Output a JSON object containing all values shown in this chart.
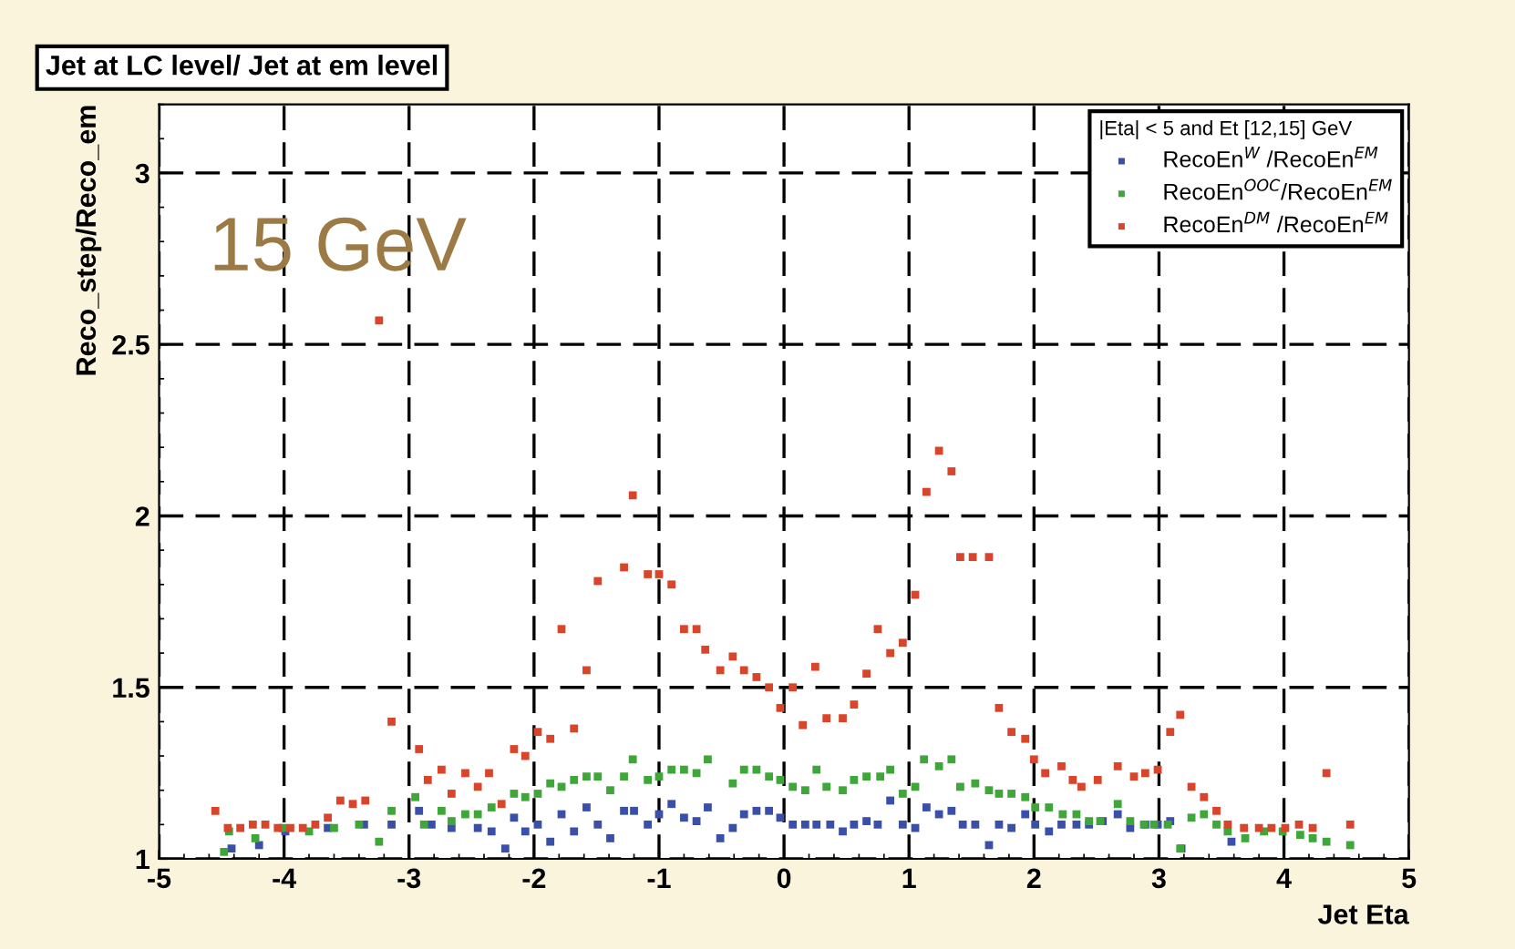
{
  "chart_data": {
    "type": "scatter",
    "title": "Jet at LC level/ Jet at em level",
    "xlabel": "Jet Eta",
    "ylabel": "Reco_step/Reco_em",
    "legend_title": "|Eta| < 5 and Et [12,15] GeV",
    "annotations": [
      "15 GeV"
    ],
    "xlim": [
      -5,
      5
    ],
    "ylim": [
      1,
      3.2
    ],
    "xticks": [
      -5,
      -4,
      -3,
      -2,
      -1,
      0,
      1,
      2,
      3,
      4,
      5
    ],
    "yticks": [
      1,
      1.5,
      2,
      2.5,
      3
    ],
    "grid": true,
    "legend": "top right",
    "marker": "square",
    "series": [
      {
        "name": "RecoEn$^{W}$ /RecoEn$^{EM}$",
        "color": "#3a4fa8",
        "x": [
          -4.42,
          -4.2,
          -3.99,
          -3.65,
          -3.36,
          -3.14,
          -2.92,
          -2.82,
          -2.66,
          -2.45,
          -2.34,
          -2.23,
          -2.16,
          -2.07,
          -1.97,
          -1.87,
          -1.78,
          -1.68,
          -1.58,
          -1.49,
          -1.39,
          -1.28,
          -1.2,
          -1.09,
          -1.0,
          -0.9,
          -0.8,
          -0.7,
          -0.61,
          -0.51,
          -0.41,
          -0.32,
          -0.22,
          -0.12,
          -0.03,
          0.07,
          0.17,
          0.26,
          0.37,
          0.47,
          0.56,
          0.66,
          0.75,
          0.85,
          0.95,
          1.05,
          1.14,
          1.24,
          1.34,
          1.43,
          1.53,
          1.64,
          1.72,
          1.82,
          1.93,
          2.01,
          2.12,
          2.22,
          2.34,
          2.44,
          2.55,
          2.67,
          2.77,
          2.89,
          2.99,
          3.09,
          3.18,
          3.58
        ],
        "values": [
          1.03,
          1.04,
          1.08,
          1.09,
          1.1,
          1.1,
          1.14,
          1.1,
          1.09,
          1.09,
          1.08,
          1.03,
          1.12,
          1.08,
          1.1,
          1.05,
          1.13,
          1.08,
          1.15,
          1.1,
          1.06,
          1.14,
          1.14,
          1.1,
          1.13,
          1.16,
          1.12,
          1.11,
          1.15,
          1.06,
          1.09,
          1.13,
          1.14,
          1.14,
          1.12,
          1.1,
          1.1,
          1.1,
          1.1,
          1.08,
          1.1,
          1.11,
          1.1,
          1.17,
          1.1,
          1.09,
          1.15,
          1.13,
          1.14,
          1.1,
          1.1,
          1.04,
          1.1,
          1.09,
          1.13,
          1.1,
          1.08,
          1.1,
          1.1,
          1.1,
          1.11,
          1.13,
          1.09,
          1.1,
          1.1,
          1.11,
          1.03,
          1.05
        ]
      },
      {
        "name": "RecoEn$^{OOC}$/RecoEn$^{EM}$",
        "color": "#3fa63a",
        "x": [
          -4.48,
          -4.44,
          -4.23,
          -4.01,
          -3.8,
          -3.6,
          -3.4,
          -3.24,
          -3.14,
          -2.95,
          -2.88,
          -2.74,
          -2.66,
          -2.55,
          -2.45,
          -2.34,
          -2.16,
          -2.07,
          -1.97,
          -1.87,
          -1.78,
          -1.68,
          -1.58,
          -1.49,
          -1.39,
          -1.28,
          -1.21,
          -1.09,
          -1.0,
          -0.9,
          -0.8,
          -0.7,
          -0.61,
          -0.41,
          -0.32,
          -0.22,
          -0.12,
          -0.03,
          0.07,
          0.17,
          0.26,
          0.34,
          0.47,
          0.56,
          0.66,
          0.77,
          0.85,
          0.95,
          1.05,
          1.12,
          1.24,
          1.34,
          1.41,
          1.53,
          1.64,
          1.72,
          1.82,
          1.93,
          2.01,
          2.12,
          2.23,
          2.34,
          2.44,
          2.53,
          2.67,
          2.77,
          2.88,
          2.96,
          3.07,
          3.17,
          3.26,
          3.36,
          3.46,
          3.55,
          3.69,
          3.84,
          3.99,
          4.13,
          4.23,
          4.34,
          4.53
        ],
        "values": [
          1.02,
          1.08,
          1.06,
          1.09,
          1.08,
          1.09,
          1.1,
          1.05,
          1.14,
          1.18,
          1.1,
          1.14,
          1.11,
          1.13,
          1.13,
          1.15,
          1.19,
          1.18,
          1.19,
          1.22,
          1.21,
          1.23,
          1.24,
          1.24,
          1.2,
          1.24,
          1.29,
          1.23,
          1.24,
          1.26,
          1.26,
          1.25,
          1.29,
          1.22,
          1.26,
          1.26,
          1.24,
          1.23,
          1.21,
          1.2,
          1.26,
          1.21,
          1.2,
          1.23,
          1.24,
          1.24,
          1.26,
          1.19,
          1.21,
          1.29,
          1.27,
          1.29,
          1.21,
          1.22,
          1.2,
          1.19,
          1.19,
          1.18,
          1.15,
          1.15,
          1.13,
          1.13,
          1.11,
          1.11,
          1.16,
          1.11,
          1.1,
          1.1,
          1.1,
          1.03,
          1.12,
          1.13,
          1.1,
          1.08,
          1.06,
          1.08,
          1.08,
          1.07,
          1.06,
          1.05,
          1.04
        ]
      },
      {
        "name": "RecoEn$^{DM}$ /RecoEn$^{EM}$",
        "color": "#d9452b",
        "x": [
          -4.55,
          -4.45,
          -4.35,
          -4.25,
          -4.15,
          -4.05,
          -3.95,
          -3.85,
          -3.75,
          -3.65,
          -3.55,
          -3.45,
          -3.35,
          -3.24,
          -3.14,
          -2.92,
          -2.85,
          -2.74,
          -2.66,
          -2.55,
          -2.45,
          -2.36,
          -2.26,
          -2.16,
          -2.07,
          -1.97,
          -1.87,
          -1.78,
          -1.68,
          -1.58,
          -1.49,
          -1.28,
          -1.21,
          -1.09,
          -1.0,
          -0.9,
          -0.8,
          -0.7,
          -0.63,
          -0.51,
          -0.41,
          -0.32,
          -0.22,
          -0.12,
          -0.03,
          0.07,
          0.15,
          0.25,
          0.34,
          0.47,
          0.56,
          0.66,
          0.75,
          0.85,
          0.95,
          1.05,
          1.14,
          1.24,
          1.34,
          1.41,
          1.51,
          1.64,
          1.72,
          1.82,
          1.93,
          2.0,
          2.09,
          2.22,
          2.31,
          2.38,
          2.51,
          2.67,
          2.8,
          2.89,
          2.99,
          3.09,
          3.17,
          3.26,
          3.36,
          3.46,
          3.55,
          3.68,
          3.8,
          3.9,
          4.01,
          4.12,
          4.23,
          4.34,
          4.53
        ],
        "values": [
          1.14,
          1.09,
          1.09,
          1.1,
          1.1,
          1.09,
          1.09,
          1.09,
          1.1,
          1.12,
          1.17,
          1.16,
          1.17,
          2.57,
          1.4,
          1.32,
          1.23,
          1.26,
          1.19,
          1.25,
          1.21,
          1.25,
          1.16,
          1.32,
          1.3,
          1.37,
          1.35,
          1.67,
          1.38,
          1.55,
          1.81,
          1.85,
          2.06,
          1.83,
          1.83,
          1.8,
          1.67,
          1.67,
          1.61,
          1.55,
          1.59,
          1.55,
          1.53,
          1.5,
          1.44,
          1.5,
          1.39,
          1.56,
          1.41,
          1.41,
          1.45,
          1.54,
          1.67,
          1.6,
          1.63,
          1.77,
          2.07,
          2.19,
          2.13,
          1.88,
          1.88,
          1.88,
          1.44,
          1.37,
          1.35,
          1.29,
          1.25,
          1.27,
          1.23,
          1.21,
          1.23,
          1.27,
          1.24,
          1.25,
          1.26,
          1.37,
          1.42,
          1.21,
          1.18,
          1.14,
          1.1,
          1.09,
          1.09,
          1.09,
          1.09,
          1.1,
          1.09,
          1.25,
          1.1
        ]
      }
    ]
  }
}
